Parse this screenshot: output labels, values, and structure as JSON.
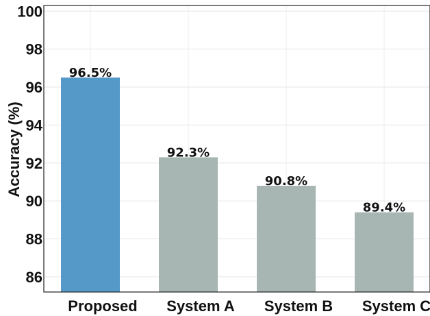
{
  "chart_data": {
    "type": "bar",
    "title": "",
    "xlabel": "",
    "ylabel": "Accuracy (%)",
    "categories": [
      "Proposed",
      "System A",
      "System B",
      "System C"
    ],
    "values": [
      96.5,
      92.3,
      90.8,
      89.4
    ],
    "data_labels": [
      "96.5%",
      "92.3%",
      "90.8%",
      "89.4%"
    ],
    "colors": [
      "#5599c8",
      "#a7b5b3",
      "#a7b5b3",
      "#a7b5b3"
    ],
    "ylim": [
      85.2,
      100.3
    ],
    "yticks": [
      86,
      88,
      90,
      92,
      94,
      96,
      98,
      100
    ],
    "grid": true,
    "legend": "none"
  }
}
